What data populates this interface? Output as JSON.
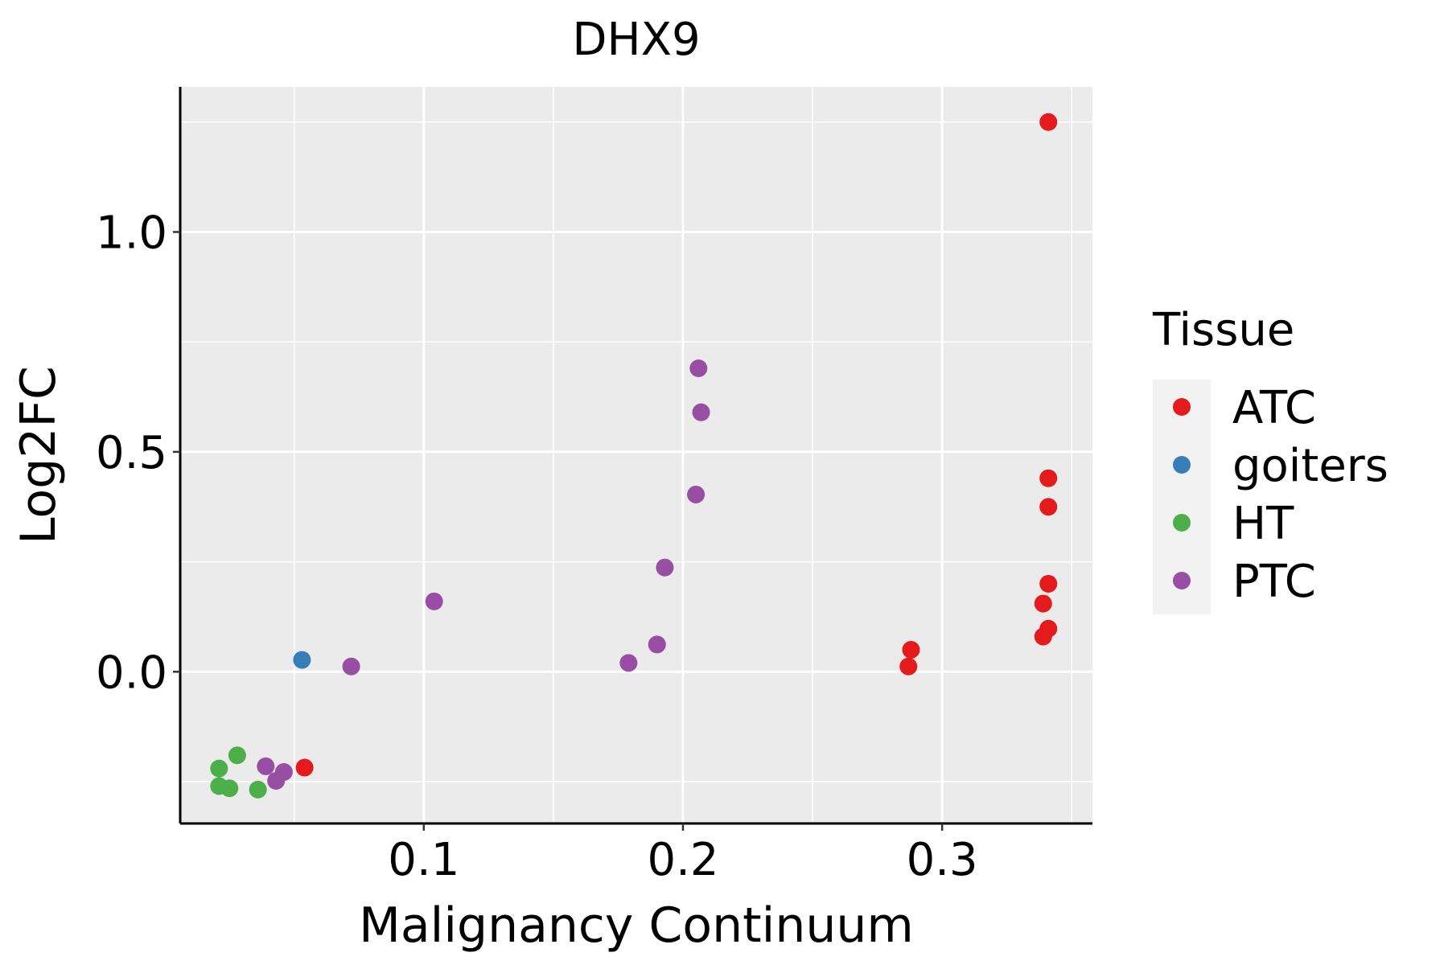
{
  "chart_data": {
    "type": "scatter",
    "title": "DHX9",
    "xlabel": "Malignancy Continuum",
    "ylabel": "Log2FC",
    "xlim": [
      0.006,
      0.358
    ],
    "ylim": [
      -0.345,
      1.33
    ],
    "x_ticks": [
      {
        "value": 0.1,
        "label": "0.1"
      },
      {
        "value": 0.2,
        "label": "0.2"
      },
      {
        "value": 0.3,
        "label": "0.3"
      }
    ],
    "y_ticks": [
      {
        "value": 0.0,
        "label": "0.0"
      },
      {
        "value": 0.5,
        "label": "0.5"
      },
      {
        "value": 1.0,
        "label": "1.0"
      }
    ],
    "grid": true,
    "legend": {
      "title": "Tissue",
      "position": "right",
      "entries": [
        {
          "label": "ATC",
          "color": "#E41A1C"
        },
        {
          "label": "goiters",
          "color": "#377EB8"
        },
        {
          "label": "HT",
          "color": "#4DAF4A"
        },
        {
          "label": "PTC",
          "color": "#984EA3"
        }
      ]
    },
    "series": [
      {
        "name": "ATC",
        "color": "#E41A1C",
        "points": [
          {
            "x": 0.341,
            "y": 1.25
          },
          {
            "x": 0.341,
            "y": 0.44
          },
          {
            "x": 0.341,
            "y": 0.375
          },
          {
            "x": 0.341,
            "y": 0.2
          },
          {
            "x": 0.339,
            "y": 0.155
          },
          {
            "x": 0.341,
            "y": 0.098
          },
          {
            "x": 0.339,
            "y": 0.08
          },
          {
            "x": 0.288,
            "y": 0.05
          },
          {
            "x": 0.287,
            "y": 0.012
          },
          {
            "x": 0.054,
            "y": -0.218
          }
        ]
      },
      {
        "name": "goiters",
        "color": "#377EB8",
        "points": [
          {
            "x": 0.053,
            "y": 0.027
          }
        ]
      },
      {
        "name": "HT",
        "color": "#4DAF4A",
        "points": [
          {
            "x": 0.028,
            "y": -0.19
          },
          {
            "x": 0.021,
            "y": -0.22
          },
          {
            "x": 0.021,
            "y": -0.26
          },
          {
            "x": 0.025,
            "y": -0.265
          },
          {
            "x": 0.036,
            "y": -0.268
          }
        ]
      },
      {
        "name": "PTC",
        "color": "#984EA3",
        "points": [
          {
            "x": 0.206,
            "y": 0.69
          },
          {
            "x": 0.207,
            "y": 0.59
          },
          {
            "x": 0.205,
            "y": 0.403
          },
          {
            "x": 0.193,
            "y": 0.237
          },
          {
            "x": 0.104,
            "y": 0.16
          },
          {
            "x": 0.19,
            "y": 0.062
          },
          {
            "x": 0.179,
            "y": 0.02
          },
          {
            "x": 0.072,
            "y": 0.012
          },
          {
            "x": 0.039,
            "y": -0.215
          },
          {
            "x": 0.046,
            "y": -0.228
          },
          {
            "x": 0.043,
            "y": -0.248
          }
        ]
      }
    ]
  }
}
